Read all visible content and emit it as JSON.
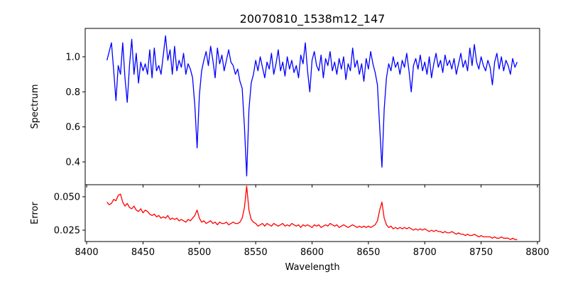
{
  "chart_data": [
    {
      "type": "line",
      "title": "20070810_1538m12_147",
      "xlabel": "",
      "ylabel": "Spectrum",
      "xlim": [
        8398.7,
        8801.9
      ],
      "ylim": [
        0.27,
        1.162
      ],
      "xticks": [
        8400,
        8450,
        8500,
        8550,
        8600,
        8650,
        8700,
        8750,
        8800
      ],
      "yticks": [
        0.4,
        0.6,
        0.8,
        1.0
      ],
      "ytick_labels": [
        "0.4",
        "0.6",
        "0.8",
        "1.0"
      ],
      "grid": false,
      "color": "#0000ff",
      "x_start": 8418,
      "x_step": 2,
      "values": [
        0.98,
        1.03,
        1.08,
        0.92,
        0.75,
        0.95,
        0.9,
        1.08,
        0.88,
        0.74,
        0.95,
        1.1,
        0.9,
        1.02,
        0.85,
        0.97,
        0.92,
        0.96,
        0.9,
        1.04,
        0.88,
        1.05,
        0.92,
        0.95,
        0.9,
        1.01,
        1.12,
        0.98,
        1.04,
        0.9,
        1.06,
        0.92,
        0.98,
        0.94,
        1.02,
        0.9,
        0.96,
        0.93,
        0.88,
        0.72,
        0.48,
        0.78,
        0.92,
        0.98,
        1.03,
        0.95,
        1.06,
        0.98,
        0.88,
        1.05,
        0.96,
        1.01,
        0.92,
        0.98,
        1.04,
        0.97,
        0.95,
        0.9,
        0.93,
        0.86,
        0.82,
        0.6,
        0.32,
        0.7,
        0.85,
        0.9,
        0.98,
        0.92,
        1.0,
        0.94,
        0.88,
        0.97,
        0.93,
        1.02,
        0.9,
        0.96,
        1.04,
        0.92,
        0.97,
        0.89,
        1.0,
        0.93,
        0.98,
        0.91,
        0.95,
        0.88,
        1.01,
        0.96,
        1.08,
        0.92,
        0.8,
        0.98,
        1.03,
        0.95,
        0.92,
        1.01,
        0.88,
        0.99,
        0.95,
        1.03,
        0.92,
        0.97,
        0.9,
        0.99,
        0.93,
        1.0,
        0.87,
        0.96,
        0.92,
        1.05,
        0.94,
        0.98,
        0.9,
        0.96,
        0.86,
        0.99,
        0.93,
        1.03,
        0.96,
        0.91,
        0.84,
        0.6,
        0.37,
        0.7,
        0.88,
        0.96,
        0.92,
        1.0,
        0.94,
        0.97,
        0.9,
        0.98,
        0.94,
        1.02,
        0.92,
        0.8,
        0.95,
        0.99,
        0.93,
        1.01,
        0.92,
        0.97,
        0.9,
        1.0,
        0.88,
        0.96,
        1.02,
        0.94,
        0.98,
        0.91,
        1.01,
        0.95,
        0.98,
        0.93,
        0.99,
        0.9,
        0.96,
        1.02,
        0.94,
        0.98,
        0.92,
        1.05,
        0.95,
        1.07,
        0.97,
        0.93,
        1.0,
        0.95,
        0.92,
        0.98,
        0.94,
        0.84,
        0.97,
        1.02,
        0.93,
        1.0,
        0.92,
        0.98,
        0.95,
        0.9,
        0.99,
        0.94,
        0.97
      ]
    },
    {
      "type": "line",
      "xlabel": "Wavelength",
      "ylabel": "Error",
      "xlim": [
        8398.7,
        8801.9
      ],
      "ylim": [
        0.0165,
        0.059
      ],
      "xticks": [
        8400,
        8450,
        8500,
        8550,
        8600,
        8650,
        8700,
        8750,
        8800
      ],
      "xtick_labels": [
        "8400",
        "8450",
        "8500",
        "8550",
        "8600",
        "8650",
        "8700",
        "8750",
        "8800"
      ],
      "yticks": [
        0.025,
        0.05
      ],
      "ytick_labels": [
        "0.025",
        "0.050"
      ],
      "grid": false,
      "color": "#ff0000",
      "x_start": 8418,
      "x_step": 2,
      "values": [
        0.046,
        0.044,
        0.045,
        0.048,
        0.047,
        0.051,
        0.052,
        0.046,
        0.043,
        0.045,
        0.042,
        0.041,
        0.043,
        0.04,
        0.039,
        0.041,
        0.038,
        0.04,
        0.039,
        0.037,
        0.036,
        0.037,
        0.035,
        0.036,
        0.034,
        0.035,
        0.034,
        0.036,
        0.033,
        0.034,
        0.033,
        0.034,
        0.032,
        0.033,
        0.032,
        0.031,
        0.033,
        0.032,
        0.034,
        0.036,
        0.04,
        0.034,
        0.031,
        0.032,
        0.03,
        0.031,
        0.032,
        0.03,
        0.031,
        0.029,
        0.031,
        0.03,
        0.03,
        0.031,
        0.029,
        0.03,
        0.031,
        0.03,
        0.03,
        0.031,
        0.034,
        0.042,
        0.058,
        0.04,
        0.033,
        0.031,
        0.03,
        0.028,
        0.029,
        0.03,
        0.028,
        0.03,
        0.029,
        0.028,
        0.03,
        0.029,
        0.028,
        0.029,
        0.03,
        0.028,
        0.029,
        0.028,
        0.03,
        0.029,
        0.028,
        0.029,
        0.027,
        0.029,
        0.028,
        0.029,
        0.028,
        0.027,
        0.029,
        0.028,
        0.029,
        0.027,
        0.028,
        0.029,
        0.028,
        0.03,
        0.029,
        0.028,
        0.029,
        0.027,
        0.028,
        0.029,
        0.028,
        0.027,
        0.028,
        0.029,
        0.028,
        0.027,
        0.028,
        0.027,
        0.028,
        0.027,
        0.028,
        0.027,
        0.028,
        0.029,
        0.032,
        0.04,
        0.046,
        0.034,
        0.029,
        0.027,
        0.028,
        0.026,
        0.027,
        0.026,
        0.027,
        0.026,
        0.027,
        0.026,
        0.027,
        0.026,
        0.025,
        0.026,
        0.025,
        0.026,
        0.025,
        0.026,
        0.025,
        0.024,
        0.025,
        0.024,
        0.025,
        0.024,
        0.024,
        0.023,
        0.024,
        0.023,
        0.023,
        0.024,
        0.023,
        0.022,
        0.023,
        0.022,
        0.022,
        0.021,
        0.022,
        0.021,
        0.021,
        0.022,
        0.021,
        0.02,
        0.021,
        0.02,
        0.02,
        0.02,
        0.02,
        0.019,
        0.02,
        0.019,
        0.019,
        0.02,
        0.019,
        0.019,
        0.019,
        0.018,
        0.019,
        0.018,
        0.018
      ]
    }
  ]
}
